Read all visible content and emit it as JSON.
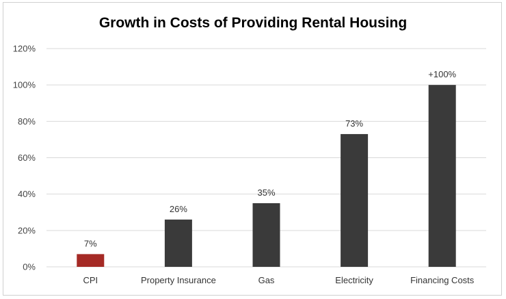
{
  "chart_data": {
    "type": "bar",
    "title": "Growth in Costs of Providing Rental Housing",
    "categories": [
      "CPI",
      "Property Insurance",
      "Gas",
      "Electricity",
      "Financing Costs"
    ],
    "values": [
      7,
      26,
      35,
      73,
      100
    ],
    "data_labels": [
      "7%",
      "26%",
      "35%",
      "73%",
      "+100%"
    ],
    "bar_colors": [
      "#a52a25",
      "#3a3a3a",
      "#3a3a3a",
      "#3a3a3a",
      "#3a3a3a"
    ],
    "ylim": [
      0,
      120
    ],
    "yticks": [
      0,
      20,
      40,
      60,
      80,
      100,
      120
    ],
    "ytick_labels": [
      "0%",
      "20%",
      "40%",
      "60%",
      "80%",
      "100%",
      "120%"
    ],
    "grid": true,
    "gridline_color": "#d9d9d9",
    "xlabel": "",
    "ylabel": ""
  }
}
